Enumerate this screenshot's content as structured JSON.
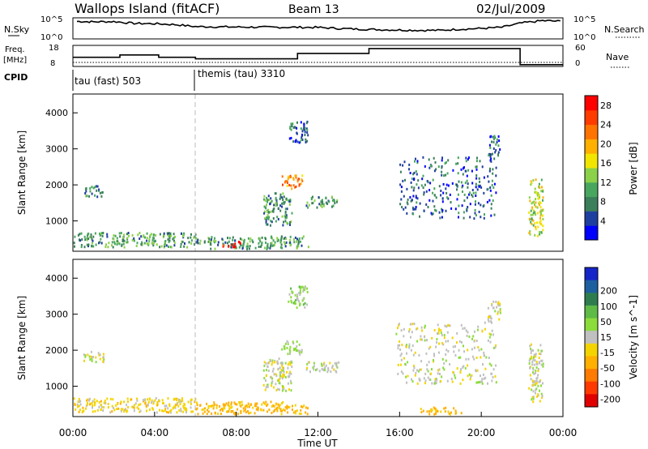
{
  "header": {
    "title": "Wallops Island (fitACF)",
    "beam": "Beam 13",
    "date": "02/Jul/2009"
  },
  "top_panels": {
    "nsky_label": "N.Sky",
    "nsky_ticks": [
      "10^5",
      "10^0"
    ],
    "nsearch_label": "N.Search",
    "nsearch_ticks": [
      "10^5",
      "10^0"
    ],
    "freq_label": "Freq.",
    "freq_unit": "[MHz]",
    "freq_ticks": [
      "18",
      "8"
    ],
    "nave_label": "Nave",
    "nave_ticks": [
      "60",
      "0"
    ],
    "cpid_label": "CPID",
    "cpid_modes": [
      {
        "name": "tau (fast) 503",
        "start_hour": 0
      },
      {
        "name": "themis (tau) 3310",
        "start_hour": 6
      }
    ]
  },
  "axes": {
    "x_ticks": [
      "00:00",
      "04:00",
      "08:00",
      "12:00",
      "16:00",
      "20:00",
      "00:00"
    ],
    "x_label": "Time UT",
    "y_label": "Slant Range [km]",
    "y_ticks": [
      "1000",
      "2000",
      "3000",
      "4000"
    ]
  },
  "colorbars": {
    "power": {
      "label": "Power [dB]",
      "ticks": [
        "4",
        "8",
        "12",
        "16",
        "20",
        "24",
        "28"
      ],
      "colors": [
        "#0000ff",
        "#1f3fa0",
        "#3a7f5a",
        "#49a65f",
        "#8bd14a",
        "#f2e600",
        "#ffb000",
        "#ff7300",
        "#ff3c00",
        "#ff0000"
      ]
    },
    "velocity": {
      "label": "Velocity [m s^-1]",
      "ticks": [
        "200",
        "100",
        "50",
        "15",
        "-15",
        "-50",
        "-100",
        "-200"
      ],
      "colors": [
        "#1525c8",
        "#1e5fa0",
        "#2f7d4f",
        "#5dbb46",
        "#8cdc3c",
        "#c0c0c0",
        "#f4d400",
        "#ffb000",
        "#ff7a00",
        "#ff3a00",
        "#e00000"
      ]
    }
  },
  "chart_data": [
    {
      "type": "line",
      "title": "N.Sky",
      "x_range_hours": [
        0,
        24
      ],
      "y_scale": "log",
      "ylim": [
        1,
        100000
      ],
      "series": [
        {
          "name": "N.Sky",
          "x": [
            0.2,
            1,
            2,
            3,
            4,
            5,
            6,
            7,
            8,
            9,
            10,
            11,
            12,
            13,
            14,
            15,
            16,
            17,
            18,
            19,
            20,
            21,
            22,
            23,
            24
          ],
          "y": [
            20000,
            15000,
            18000,
            6000,
            5000,
            3000,
            900,
            800,
            700,
            650,
            600,
            600,
            550,
            300,
            200,
            150,
            120,
            100,
            100,
            200,
            300,
            600,
            8000,
            30000,
            20000
          ]
        }
      ]
    },
    {
      "type": "line",
      "title": "Freq.",
      "x_range_hours": [
        0,
        24
      ],
      "ylim": [
        8,
        18
      ],
      "series": [
        {
          "name": "Freq.",
          "x": [
            0,
            1,
            2.3,
            3.7,
            4.2,
            5.2,
            6.0,
            10.9,
            11.0,
            14.5,
            21.8,
            21.9,
            24
          ],
          "y": [
            12.3,
            12.3,
            13.5,
            13.5,
            12.3,
            12.3,
            11.5,
            11.5,
            14.3,
            16.8,
            16.8,
            8.5,
            8.5
          ]
        },
        {
          "name": "Nave",
          "x": [
            0,
            24
          ],
          "y": [
            8,
            8
          ]
        }
      ]
    },
    {
      "type": "heatmap",
      "title": "Power [dB]",
      "xlabel": "Time UT",
      "ylabel": "Slant Range [km]",
      "x_range_hours": [
        0,
        24
      ],
      "ylim": [
        180,
        4500
      ],
      "zlim": [
        0,
        30
      ],
      "clusters": [
        {
          "t": [
            0.5,
            1.5
          ],
          "r": [
            1700,
            2000
          ],
          "p": 8
        },
        {
          "t": [
            0.0,
            6.0
          ],
          "r": [
            300,
            700
          ],
          "p": 10
        },
        {
          "t": [
            6.0,
            11.5
          ],
          "r": [
            250,
            600
          ],
          "p": 9
        },
        {
          "t": [
            7.3,
            8.2
          ],
          "r": [
            300,
            450
          ],
          "p": 27
        },
        {
          "t": [
            9.3,
            10.7
          ],
          "r": [
            900,
            1800
          ],
          "p": 9
        },
        {
          "t": [
            10.2,
            11.2
          ],
          "r": [
            1900,
            2300
          ],
          "p": 22
        },
        {
          "t": [
            10.5,
            11.5
          ],
          "r": [
            3200,
            3800
          ],
          "p": 6
        },
        {
          "t": [
            11.4,
            13.0
          ],
          "r": [
            1400,
            1700
          ],
          "p": 10
        },
        {
          "t": [
            15.8,
            20.7
          ],
          "r": [
            1100,
            2800
          ],
          "p": 6
        },
        {
          "t": [
            20.3,
            20.9
          ],
          "r": [
            2800,
            3400
          ],
          "p": 6
        },
        {
          "t": [
            22.3,
            23.0
          ],
          "r": [
            600,
            2200
          ],
          "p": 15
        }
      ]
    },
    {
      "type": "heatmap",
      "title": "Velocity [m s^-1]",
      "xlabel": "Time UT",
      "ylabel": "Slant Range [km]",
      "x_range_hours": [
        0,
        24
      ],
      "ylim": [
        180,
        4500
      ],
      "zlim": [
        -200,
        200
      ],
      "clusters": [
        {
          "t": [
            0.5,
            1.5
          ],
          "r": [
            1700,
            2000
          ],
          "v": 0
        },
        {
          "t": [
            0.0,
            6.0
          ],
          "r": [
            300,
            700
          ],
          "v": -30
        },
        {
          "t": [
            6.0,
            11.5
          ],
          "r": [
            250,
            600
          ],
          "v": -60
        },
        {
          "t": [
            9.3,
            10.7
          ],
          "r": [
            900,
            1800
          ],
          "v": 0
        },
        {
          "t": [
            10.2,
            11.2
          ],
          "r": [
            1900,
            2300
          ],
          "v": 20
        },
        {
          "t": [
            10.5,
            11.5
          ],
          "r": [
            3200,
            3800
          ],
          "v": 30
        },
        {
          "t": [
            11.4,
            13.0
          ],
          "r": [
            1400,
            1700
          ],
          "v": 0
        },
        {
          "t": [
            15.8,
            20.7
          ],
          "r": [
            1100,
            2800
          ],
          "v": 0
        },
        {
          "t": [
            17.0,
            19.0
          ],
          "r": [
            250,
            450
          ],
          "v": -60
        },
        {
          "t": [
            20.3,
            20.9
          ],
          "r": [
            2800,
            3400
          ],
          "v": 0
        },
        {
          "t": [
            22.3,
            23.0
          ],
          "r": [
            600,
            2200
          ],
          "v": 0
        }
      ]
    }
  ]
}
